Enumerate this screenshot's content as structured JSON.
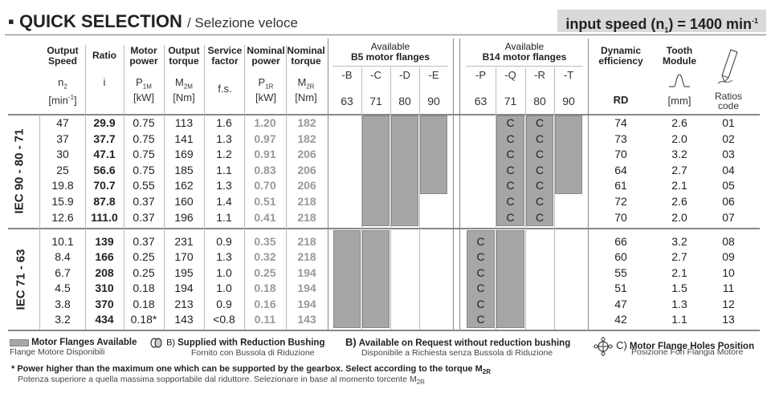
{
  "title": {
    "main": "QUICK SELECTION",
    "sub": "/ Selezione veloce",
    "bullet": "▪",
    "speed_prefix": "input speed (n",
    "speed_sub": "1",
    "speed_suffix": ") = 1400 min",
    "speed_sup": "-1"
  },
  "headers": {
    "output_speed": [
      "Output",
      "Speed"
    ],
    "ratio": "Ratio",
    "motor_power": [
      "Motor",
      "power"
    ],
    "output_torque": [
      "Output",
      "torque"
    ],
    "service_factor": [
      "Service",
      "factor"
    ],
    "nominal_power": [
      "Nominal",
      "power"
    ],
    "nominal_torque": [
      "Nominal",
      "torque"
    ],
    "b5_title": [
      "Available",
      "B5 motor flanges"
    ],
    "b14_title": [
      "Available",
      "B14 motor flanges"
    ],
    "dyn_eff": [
      "Dynamic",
      "efficiency"
    ],
    "tooth_module": [
      "Tooth",
      "Module"
    ],
    "symbols": {
      "n2": "n",
      "n2_sub": "2",
      "n2_unit": "[min",
      "n2_unit_sup": "-1",
      "n2_unit_end": "]",
      "i": "i",
      "p1m": "P",
      "p1m_sub": "1M",
      "p1m_unit": "[kW]",
      "m2m": "M",
      "m2m_sub": "2M",
      "m2m_unit": "[Nm]",
      "fs": "f.s.",
      "p1r": "P",
      "p1r_sub": "1R",
      "p1r_unit": "[kW]",
      "m2r": "M",
      "m2r_sub": "2R",
      "m2r_unit": "[Nm]",
      "rd": "RD",
      "mm": "[mm]",
      "ratios_code": [
        "Ratios",
        "code"
      ]
    },
    "b5_flanges": [
      "-B",
      "-C",
      "-D",
      "-E"
    ],
    "b5_sizes": [
      "63",
      "71",
      "80",
      "90"
    ],
    "b14_flanges": [
      "-P",
      "-Q",
      "-R",
      "-T"
    ],
    "b14_sizes": [
      "63",
      "71",
      "80",
      "90"
    ]
  },
  "groups": [
    {
      "label": "IEC 90 - 80 - 71",
      "rows": [
        {
          "n2": "47",
          "i": "29.9",
          "p1m": "0.75",
          "m2m": "113",
          "fs": "1.6",
          "p1r": "1.20",
          "m2r": "182",
          "rd": "74",
          "mod": "2.6",
          "code": "01"
        },
        {
          "n2": "37",
          "i": "37.7",
          "p1m": "0.75",
          "m2m": "141",
          "fs": "1.3",
          "p1r": "0.97",
          "m2r": "182",
          "rd": "73",
          "mod": "2.0",
          "code": "02"
        },
        {
          "n2": "30",
          "i": "47.1",
          "p1m": "0.75",
          "m2m": "169",
          "fs": "1.2",
          "p1r": "0.91",
          "m2r": "206",
          "rd": "70",
          "mod": "3.2",
          "code": "03"
        },
        {
          "n2": "25",
          "i": "56.6",
          "p1m": "0.75",
          "m2m": "185",
          "fs": "1.1",
          "p1r": "0.83",
          "m2r": "206",
          "rd": "64",
          "mod": "2.7",
          "code": "04"
        },
        {
          "n2": "19.8",
          "i": "70.7",
          "p1m": "0.55",
          "m2m": "162",
          "fs": "1.3",
          "p1r": "0.70",
          "m2r": "206",
          "rd": "61",
          "mod": "2.1",
          "code": "05"
        },
        {
          "n2": "15.9",
          "i": "87.8",
          "p1m": "0.37",
          "m2m": "160",
          "fs": "1.4",
          "p1r": "0.51",
          "m2r": "218",
          "rd": "72",
          "mod": "2.6",
          "code": "06"
        },
        {
          "n2": "12.6",
          "i": "111.0",
          "p1m": "0.37",
          "m2m": "196",
          "fs": "1.1",
          "p1r": "0.41",
          "m2r": "218",
          "rd": "70",
          "mod": "2.0",
          "code": "07"
        }
      ],
      "c_marks": [
        "C",
        "C",
        "C",
        "C",
        "C",
        "C",
        "C",
        "C",
        "C",
        "C",
        "C",
        "C",
        "C",
        "C"
      ]
    },
    {
      "label": "IEC 71 - 63",
      "rows": [
        {
          "n2": "10.1",
          "i": "139",
          "p1m": "0.37",
          "m2m": "231",
          "fs": "0.9",
          "p1r": "0.35",
          "m2r": "218",
          "rd": "66",
          "mod": "3.2",
          "code": "08"
        },
        {
          "n2": "8.4",
          "i": "166",
          "p1m": "0.25",
          "m2m": "170",
          "fs": "1.3",
          "p1r": "0.32",
          "m2r": "218",
          "rd": "60",
          "mod": "2.7",
          "code": "09"
        },
        {
          "n2": "6.7",
          "i": "208",
          "p1m": "0.25",
          "m2m": "195",
          "fs": "1.0",
          "p1r": "0.25",
          "m2r": "194",
          "rd": "55",
          "mod": "2.1",
          "code": "10"
        },
        {
          "n2": "4.5",
          "i": "310",
          "p1m": "0.18",
          "m2m": "194",
          "fs": "1.0",
          "p1r": "0.18",
          "m2r": "194",
          "rd": "51",
          "mod": "1.5",
          "code": "11"
        },
        {
          "n2": "3.8",
          "i": "370",
          "p1m": "0.18",
          "m2m": "213",
          "fs": "0.9",
          "p1r": "0.16",
          "m2r": "194",
          "rd": "47",
          "mod": "1.3",
          "code": "12"
        },
        {
          "n2": "3.2",
          "i": "434",
          "p1m": "0.18*",
          "m2m": "143",
          "fs": "<0.8",
          "p1r": "0.11",
          "m2r": "143",
          "rd": "42",
          "mod": "1.1",
          "code": "13"
        }
      ],
      "c_marks": [
        "C",
        "C",
        "C",
        "C",
        "C",
        "C"
      ]
    }
  ],
  "legend": {
    "item1_title": "Motor Flanges Available",
    "item1_sub": "Flange Motore Disponibili",
    "item2_prefix": "B)",
    "item2_title": "Supplied with Reduction Bushing",
    "item2_sub": "Fornito con Bussola di Riduzione",
    "item3_prefix": "B)",
    "item3_title": "Available on Request without reduction bushing",
    "item3_sub": "Disponibile a Richiesta senza Bussola di Riduzione",
    "item4_prefix": "C)",
    "item4_title": "Motor Flange Holes Position",
    "item4_sub": "Posizione Fori Flangia Motore"
  },
  "footnote": {
    "line1": "* Power higher than the maximum one which can be supported by the gearbox. Select according to the torque M",
    "line1_sub": "2R",
    "line2": "Potenza superiore a quella massima sopportabile dal riduttore. Selezionare in base al momento torcente M",
    "line2_sub": "2R"
  },
  "colors": {
    "available_fill": "#a6a6a6",
    "speed_box_bg": "#d9d9d9",
    "nominal_grey_text": "#999999"
  }
}
